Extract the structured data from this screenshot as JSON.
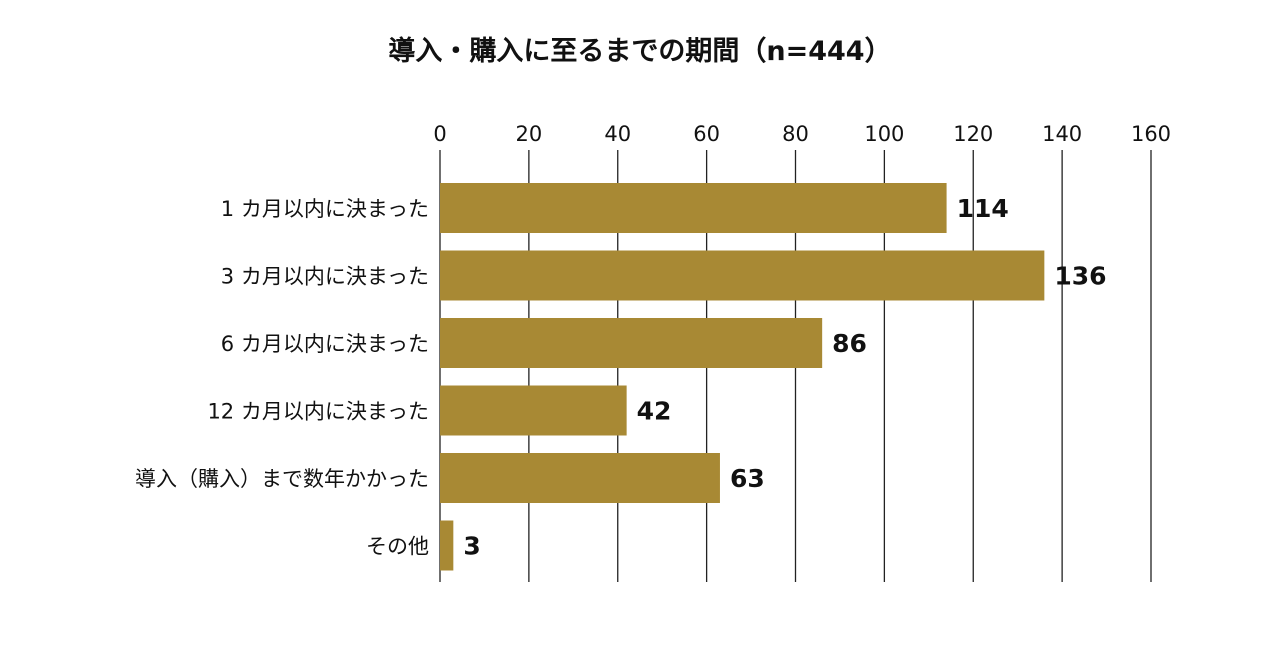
{
  "chart_data": {
    "type": "bar",
    "orientation": "horizontal",
    "title": "導入・購入に至るまでの期間（n=444）",
    "categories": [
      "1 カ月以内に決まった",
      "3 カ月以内に決まった",
      "6 カ月以内に決まった",
      "12 カ月以内に決まった",
      "導入（購入）まで数年かかった",
      "その他"
    ],
    "values": [
      114,
      136,
      86,
      42,
      63,
      3
    ],
    "xlim": [
      0,
      160
    ],
    "xticks": [
      0,
      20,
      40,
      60,
      80,
      100,
      120,
      140,
      160
    ],
    "tick_labels": [
      "0",
      "20",
      "40",
      "60",
      "80",
      "100",
      "120",
      "140",
      "160"
    ],
    "grid": true,
    "bar_color": "#a88934",
    "xlabel": "",
    "ylabel": ""
  }
}
